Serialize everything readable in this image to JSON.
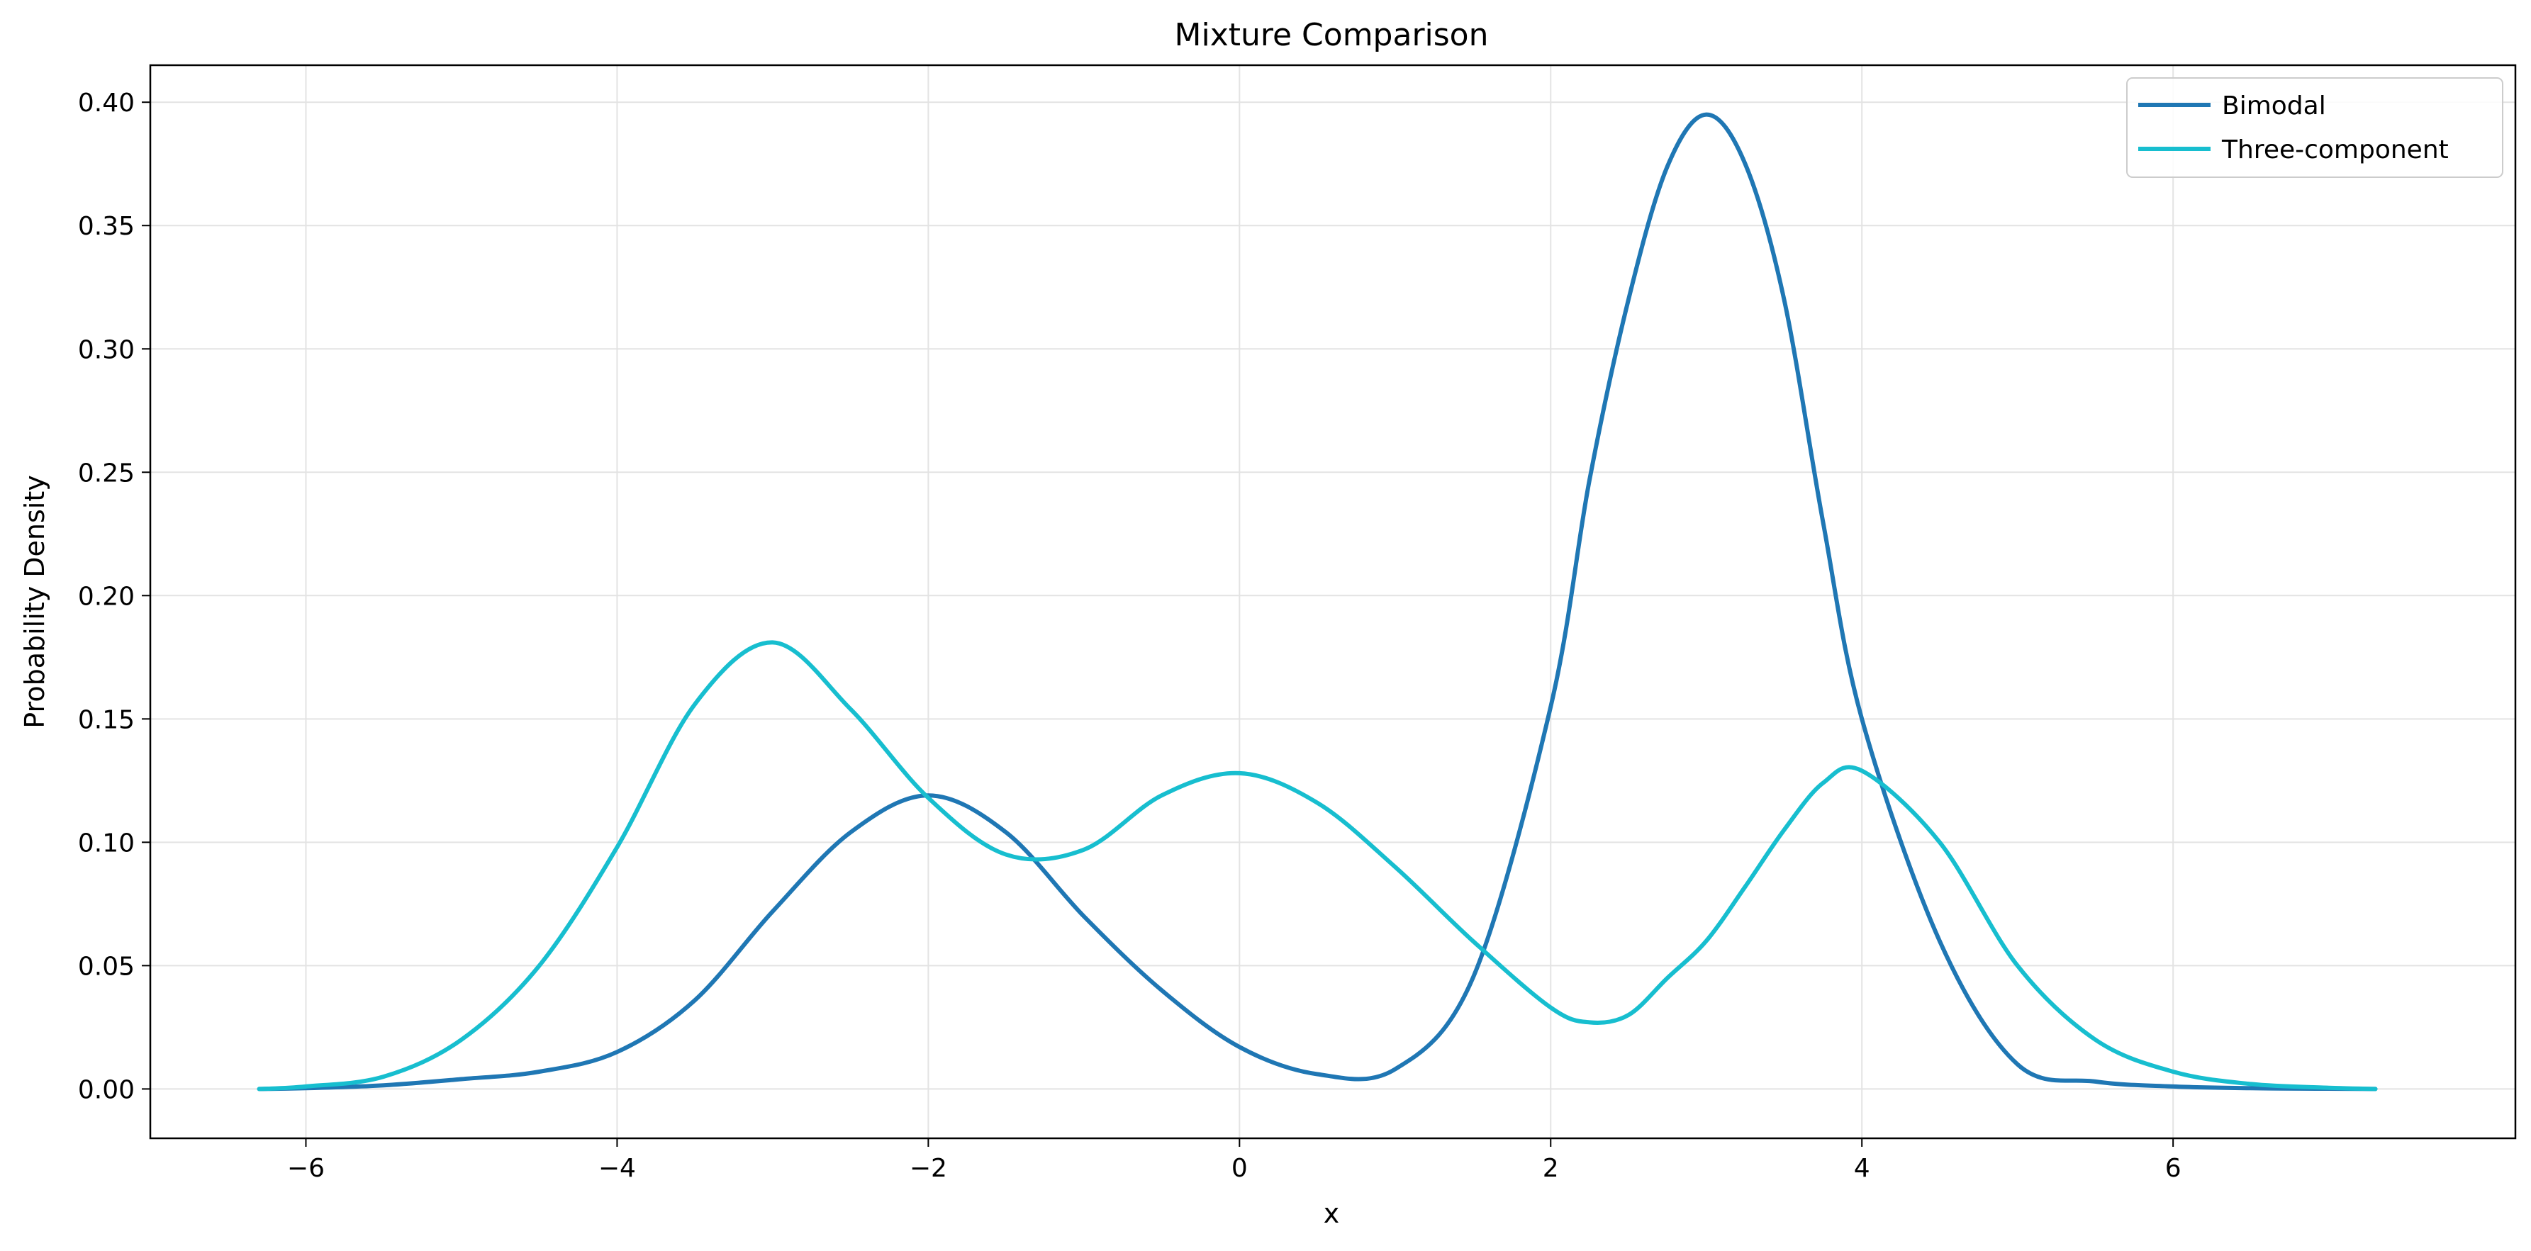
{
  "chart_data": {
    "type": "line",
    "title": "Mixture Comparison",
    "xlabel": "x",
    "ylabel": "Probability Density",
    "xlim": [
      -7,
      8.2
    ],
    "ylim": [
      -0.02,
      0.415
    ],
    "x_ticks": [
      -6,
      -4,
      -2,
      0,
      2,
      4,
      6
    ],
    "y_ticks": [
      0.0,
      0.05,
      0.1,
      0.15,
      0.2,
      0.25,
      0.3,
      0.35,
      0.4
    ],
    "grid": true,
    "legend_position": "top-right",
    "x": [
      -6.3,
      -6.0,
      -5.5,
      -5.0,
      -4.5,
      -4.0,
      -3.5,
      -3.0,
      -2.5,
      -2.0,
      -1.5,
      -1.0,
      -0.5,
      0.0,
      0.5,
      1.0,
      1.5,
      2.0,
      2.25,
      2.5,
      2.75,
      3.0,
      3.25,
      3.5,
      3.75,
      4.0,
      4.5,
      5.0,
      5.5,
      6.0,
      6.5,
      7.0,
      7.3
    ],
    "series": [
      {
        "name": "Bimodal",
        "color": "#1f77b4",
        "values": [
          0.0,
          0.0003,
          0.0015,
          0.004,
          0.007,
          0.015,
          0.036,
          0.072,
          0.104,
          0.119,
          0.104,
          0.07,
          0.04,
          0.017,
          0.006,
          0.008,
          0.045,
          0.155,
          0.247,
          0.32,
          0.374,
          0.395,
          0.375,
          0.32,
          0.23,
          0.15,
          0.06,
          0.01,
          0.003,
          0.001,
          0.0003,
          0.0001,
          0.0
        ]
      },
      {
        "name": "Three-component",
        "color": "#17becf",
        "values": [
          0.0,
          0.001,
          0.005,
          0.02,
          0.05,
          0.098,
          0.156,
          0.181,
          0.154,
          0.118,
          0.095,
          0.097,
          0.119,
          0.128,
          0.116,
          0.09,
          0.06,
          0.033,
          0.027,
          0.03,
          0.045,
          0.06,
          0.082,
          0.105,
          0.124,
          0.129,
          0.1,
          0.05,
          0.02,
          0.007,
          0.002,
          0.0005,
          0.0
        ]
      }
    ]
  }
}
